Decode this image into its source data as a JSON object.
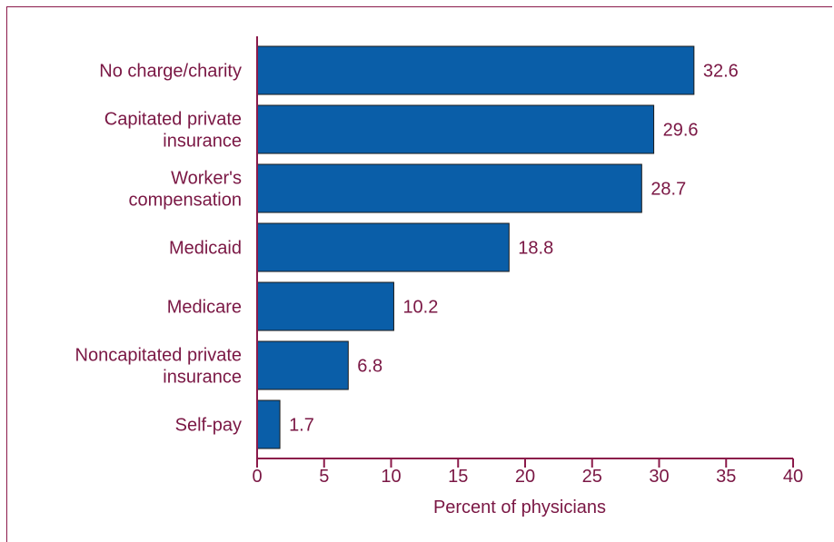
{
  "chart_data": {
    "type": "bar",
    "orientation": "horizontal",
    "categories": [
      [
        "No charge/charity"
      ],
      [
        "Capitated private",
        "insurance"
      ],
      [
        "Worker's",
        "compensation"
      ],
      [
        "Medicaid"
      ],
      [
        "Medicare"
      ],
      [
        "Noncapitated private",
        "insurance"
      ],
      [
        "Self-pay"
      ]
    ],
    "values": [
      32.6,
      29.6,
      28.7,
      18.8,
      10.2,
      6.8,
      1.7
    ],
    "value_labels": [
      "32.6",
      "29.6",
      "28.7",
      "18.8",
      "10.2",
      "6.8",
      "1.7"
    ],
    "xlabel": "Percent of physicians",
    "xlim": [
      0,
      40
    ],
    "xticks": [
      0,
      5,
      10,
      15,
      20,
      25,
      30,
      35,
      40
    ],
    "grid": false,
    "colors": {
      "bar": "#0a5ea8",
      "text": "#7a1744",
      "axis": "#8b1a4a"
    }
  }
}
